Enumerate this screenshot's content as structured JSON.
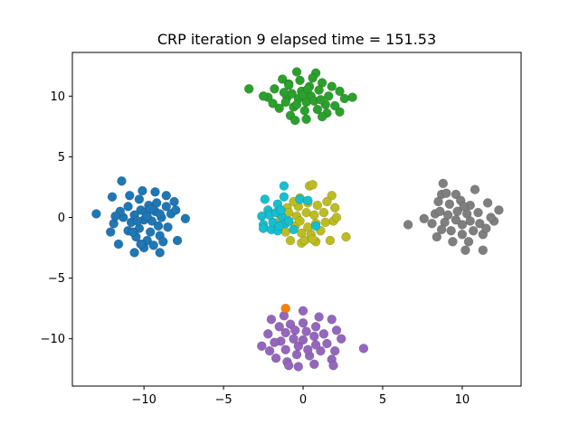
{
  "chart_data": {
    "type": "scatter",
    "title": "CRP iteration 9 elapsed time = 151.53",
    "xlabel": "",
    "ylabel": "",
    "xlim": [
      -14.5,
      13.7
    ],
    "ylim": [
      -13.9,
      13.6
    ],
    "x_ticks": [
      -10,
      -5,
      0,
      5,
      10
    ],
    "y_ticks": [
      -10,
      -5,
      0,
      5,
      10
    ],
    "x_tick_labels": [
      "−10",
      "−5",
      "0",
      "5",
      "10"
    ],
    "y_tick_labels": [
      "−10",
      "−5",
      "0",
      "5",
      "10"
    ],
    "grid": false,
    "legend": "none",
    "series": [
      {
        "color": "#1f77b4",
        "cluster_center": [
          -10,
          0
        ],
        "points": [
          [
            -13.0,
            0.3
          ],
          [
            -12.0,
            1.7
          ],
          [
            -11.4,
            3.0
          ],
          [
            -11.9,
            -0.5
          ],
          [
            -11.6,
            -2.2
          ],
          [
            -10.6,
            -2.9
          ],
          [
            -10.0,
            -2.5
          ],
          [
            -9.0,
            -2.9
          ],
          [
            -7.9,
            -1.9
          ],
          [
            -7.4,
            -0.1
          ],
          [
            -8.1,
            1.3
          ],
          [
            -9.3,
            2.1
          ],
          [
            -10.1,
            2.2
          ],
          [
            -10.3,
            1.5
          ],
          [
            -11.0,
            0.9
          ],
          [
            -11.3,
            0.0
          ],
          [
            -11.0,
            -1.1
          ],
          [
            -10.5,
            -1.6
          ],
          [
            -9.8,
            -1.9
          ],
          [
            -9.0,
            -1.5
          ],
          [
            -8.5,
            -0.8
          ],
          [
            -8.3,
            0.3
          ],
          [
            -8.6,
            0.9
          ],
          [
            -9.2,
            1.2
          ],
          [
            -9.7,
            1.0
          ],
          [
            -10.2,
            0.6
          ],
          [
            -10.6,
            0.2
          ],
          [
            -10.8,
            -0.4
          ],
          [
            -10.3,
            -0.9
          ],
          [
            -9.6,
            -1.2
          ],
          [
            -9.1,
            -0.7
          ],
          [
            -8.9,
            0.0
          ],
          [
            -9.3,
            0.5
          ],
          [
            -9.9,
            0.4
          ],
          [
            -10.0,
            -0.2
          ],
          [
            -9.5,
            -0.3
          ],
          [
            -9.8,
            0.1
          ],
          [
            -10.4,
            -0.3
          ],
          [
            -9.6,
            0.7
          ],
          [
            -9.0,
            0.3
          ],
          [
            -11.5,
            0.5
          ],
          [
            -12.1,
            -1.2
          ],
          [
            -10.9,
            1.8
          ],
          [
            -8.8,
            -2.0
          ],
          [
            -8.0,
            0.6
          ],
          [
            -9.4,
            -2.3
          ],
          [
            -10.7,
            -1.2
          ],
          [
            -11.8,
            0.1
          ],
          [
            -8.6,
            1.8
          ],
          [
            -10.2,
            -2.2
          ]
        ]
      },
      {
        "color": "#2ca02c",
        "cluster_center": [
          0,
          10
        ],
        "points": [
          [
            -3.4,
            10.6
          ],
          [
            -1.3,
            11.4
          ],
          [
            -1.0,
            9.9
          ],
          [
            -0.4,
            12.0
          ],
          [
            0.8,
            11.9
          ],
          [
            1.2,
            11.1
          ],
          [
            2.3,
            10.4
          ],
          [
            3.1,
            9.9
          ],
          [
            2.3,
            8.7
          ],
          [
            1.5,
            8.6
          ],
          [
            0.2,
            8.1
          ],
          [
            -0.8,
            8.4
          ],
          [
            -1.5,
            9.0
          ],
          [
            -2.2,
            9.9
          ],
          [
            -1.8,
            10.6
          ],
          [
            -0.9,
            11.0
          ],
          [
            -0.2,
            11.3
          ],
          [
            0.4,
            10.8
          ],
          [
            1.0,
            10.5
          ],
          [
            1.6,
            10.0
          ],
          [
            1.4,
            9.3
          ],
          [
            0.9,
            8.9
          ],
          [
            0.1,
            8.8
          ],
          [
            -0.6,
            9.1
          ],
          [
            -1.1,
            9.5
          ],
          [
            -0.7,
            10.2
          ],
          [
            -0.1,
            10.4
          ],
          [
            0.5,
            10.0
          ],
          [
            0.2,
            9.5
          ],
          [
            -0.3,
            9.8
          ],
          [
            0.0,
            10.1
          ],
          [
            0.7,
            9.6
          ],
          [
            -0.4,
            9.3
          ],
          [
            0.3,
            10.6
          ],
          [
            -1.2,
            10.3
          ],
          [
            1.1,
            9.7
          ],
          [
            -0.9,
            10.9
          ],
          [
            1.8,
            10.8
          ],
          [
            -1.9,
            9.4
          ],
          [
            2.0,
            9.2
          ],
          [
            0.6,
            11.5
          ],
          [
            -0.5,
            8.0
          ],
          [
            1.2,
            8.3
          ],
          [
            -2.5,
            10.0
          ],
          [
            2.6,
            9.8
          ]
        ]
      },
      {
        "color": "#bcbd22",
        "cluster_center": [
          1,
          0
        ],
        "points": [
          [
            -1.0,
            0.8
          ],
          [
            -0.2,
            1.6
          ],
          [
            0.4,
            2.6
          ],
          [
            0.6,
            2.7
          ],
          [
            1.8,
            1.8
          ],
          [
            2.0,
            0.8
          ],
          [
            1.9,
            -0.3
          ],
          [
            2.7,
            -1.6
          ],
          [
            1.7,
            -1.9
          ],
          [
            0.8,
            -2.0
          ],
          [
            -0.1,
            -2.1
          ],
          [
            -0.8,
            -1.9
          ],
          [
            -1.1,
            -1.2
          ],
          [
            -1.4,
            -0.1
          ],
          [
            -0.9,
            0.4
          ],
          [
            -0.3,
            0.9
          ],
          [
            0.3,
            1.2
          ],
          [
            0.9,
            1.0
          ],
          [
            1.3,
            0.4
          ],
          [
            1.4,
            -0.4
          ],
          [
            1.1,
            -1.1
          ],
          [
            0.5,
            -1.4
          ],
          [
            -0.1,
            -1.3
          ],
          [
            -0.5,
            -0.7
          ],
          [
            -0.4,
            0.1
          ],
          [
            0.2,
            0.4
          ],
          [
            0.7,
            0.2
          ],
          [
            0.8,
            -0.5
          ],
          [
            0.3,
            -0.8
          ],
          [
            -0.2,
            -0.3
          ],
          [
            0.1,
            -1.9
          ],
          [
            1.5,
            1.3
          ],
          [
            -0.6,
            1.3
          ],
          [
            2.1,
            0.0
          ],
          [
            0.6,
            -1.8
          ]
        ]
      },
      {
        "color": "#17becf",
        "cluster_center": [
          -1.5,
          0
        ],
        "points": [
          [
            -2.4,
            1.5
          ],
          [
            -1.2,
            1.7
          ],
          [
            -0.2,
            1.5
          ],
          [
            -1.6,
            1.1
          ],
          [
            -2.2,
            0.6
          ],
          [
            -2.6,
            0.1
          ],
          [
            -2.5,
            -0.6
          ],
          [
            -2.5,
            -0.9
          ],
          [
            -2.0,
            -1.0
          ],
          [
            -1.6,
            -1.1
          ],
          [
            -1.9,
            -0.4
          ],
          [
            -2.1,
            0.2
          ],
          [
            -1.7,
            0.4
          ],
          [
            -1.3,
            0.0
          ],
          [
            -1.1,
            -0.5
          ],
          [
            -1.5,
            -0.7
          ],
          [
            -1.4,
            0.6
          ],
          [
            -0.9,
            -0.3
          ],
          [
            -1.2,
            2.6
          ],
          [
            -0.6,
            -1.0
          ],
          [
            0.8,
            -0.7
          ],
          [
            0.3,
            1.4
          ]
        ]
      },
      {
        "color": "#7f7f7f",
        "cluster_center": [
          10,
          0
        ],
        "points": [
          [
            6.6,
            -0.6
          ],
          [
            7.6,
            -0.1
          ],
          [
            8.3,
            0.3
          ],
          [
            8.7,
            1.9
          ],
          [
            8.8,
            2.8
          ],
          [
            9.6,
            1.9
          ],
          [
            10.8,
            2.3
          ],
          [
            11.6,
            1.2
          ],
          [
            12.3,
            0.6
          ],
          [
            12.0,
            -0.3
          ],
          [
            11.3,
            -1.4
          ],
          [
            11.3,
            -2.7
          ],
          [
            10.2,
            -2.7
          ],
          [
            9.4,
            -2.0
          ],
          [
            8.4,
            -1.6
          ],
          [
            8.1,
            -0.5
          ],
          [
            8.6,
            0.5
          ],
          [
            9.2,
            1.1
          ],
          [
            9.9,
            1.4
          ],
          [
            10.5,
            1.0
          ],
          [
            11.0,
            0.4
          ],
          [
            11.1,
            -0.5
          ],
          [
            10.7,
            -1.1
          ],
          [
            10.0,
            -1.4
          ],
          [
            9.3,
            -1.1
          ],
          [
            8.9,
            -0.4
          ],
          [
            9.1,
            0.2
          ],
          [
            9.7,
            0.5
          ],
          [
            10.3,
            0.3
          ],
          [
            10.5,
            -0.3
          ],
          [
            10.0,
            -0.6
          ],
          [
            9.6,
            -0.2
          ],
          [
            10.1,
            0.9
          ],
          [
            8.7,
            -1.0
          ],
          [
            11.8,
            0.0
          ],
          [
            9.0,
            2.0
          ],
          [
            10.4,
            -2.0
          ],
          [
            11.5,
            -0.9
          ],
          [
            8.5,
            1.3
          ]
        ]
      },
      {
        "color": "#9467bd",
        "cluster_center": [
          0,
          -10
        ],
        "points": [
          [
            -2.0,
            -8.4
          ],
          [
            -1.2,
            -8.1
          ],
          [
            0.0,
            -7.7
          ],
          [
            1.0,
            -8.2
          ],
          [
            1.8,
            -8.4
          ],
          [
            2.1,
            -9.3
          ],
          [
            2.4,
            -10.0
          ],
          [
            3.8,
            -10.8
          ],
          [
            1.8,
            -11.7
          ],
          [
            1.9,
            -12.2
          ],
          [
            0.7,
            -12.1
          ],
          [
            -0.3,
            -12.3
          ],
          [
            -1.0,
            -11.9
          ],
          [
            -1.7,
            -11.6
          ],
          [
            -2.1,
            -11.0
          ],
          [
            -2.6,
            -10.6
          ],
          [
            -2.2,
            -9.6
          ],
          [
            -1.5,
            -9.0
          ],
          [
            -0.8,
            -8.8
          ],
          [
            0.0,
            -8.7
          ],
          [
            0.8,
            -9.0
          ],
          [
            1.3,
            -9.6
          ],
          [
            1.5,
            -10.4
          ],
          [
            1.1,
            -11.0
          ],
          [
            0.4,
            -11.4
          ],
          [
            -0.4,
            -11.3
          ],
          [
            -1.1,
            -10.9
          ],
          [
            -1.4,
            -10.2
          ],
          [
            -1.1,
            -9.5
          ],
          [
            -0.5,
            -9.3
          ],
          [
            0.2,
            -9.4
          ],
          [
            0.7,
            -9.8
          ],
          [
            0.8,
            -10.5
          ],
          [
            0.3,
            -10.9
          ],
          [
            -0.3,
            -10.6
          ],
          [
            -0.6,
            -10.0
          ],
          [
            0.0,
            -10.1
          ],
          [
            -1.8,
            -10.3
          ],
          [
            2.0,
            -11.0
          ],
          [
            -0.9,
            -12.2
          ]
        ]
      },
      {
        "color": "#ff7f0e",
        "cluster_center": [
          -1,
          -7.5
        ],
        "points": [
          [
            -1.1,
            -7.5
          ]
        ]
      }
    ]
  }
}
